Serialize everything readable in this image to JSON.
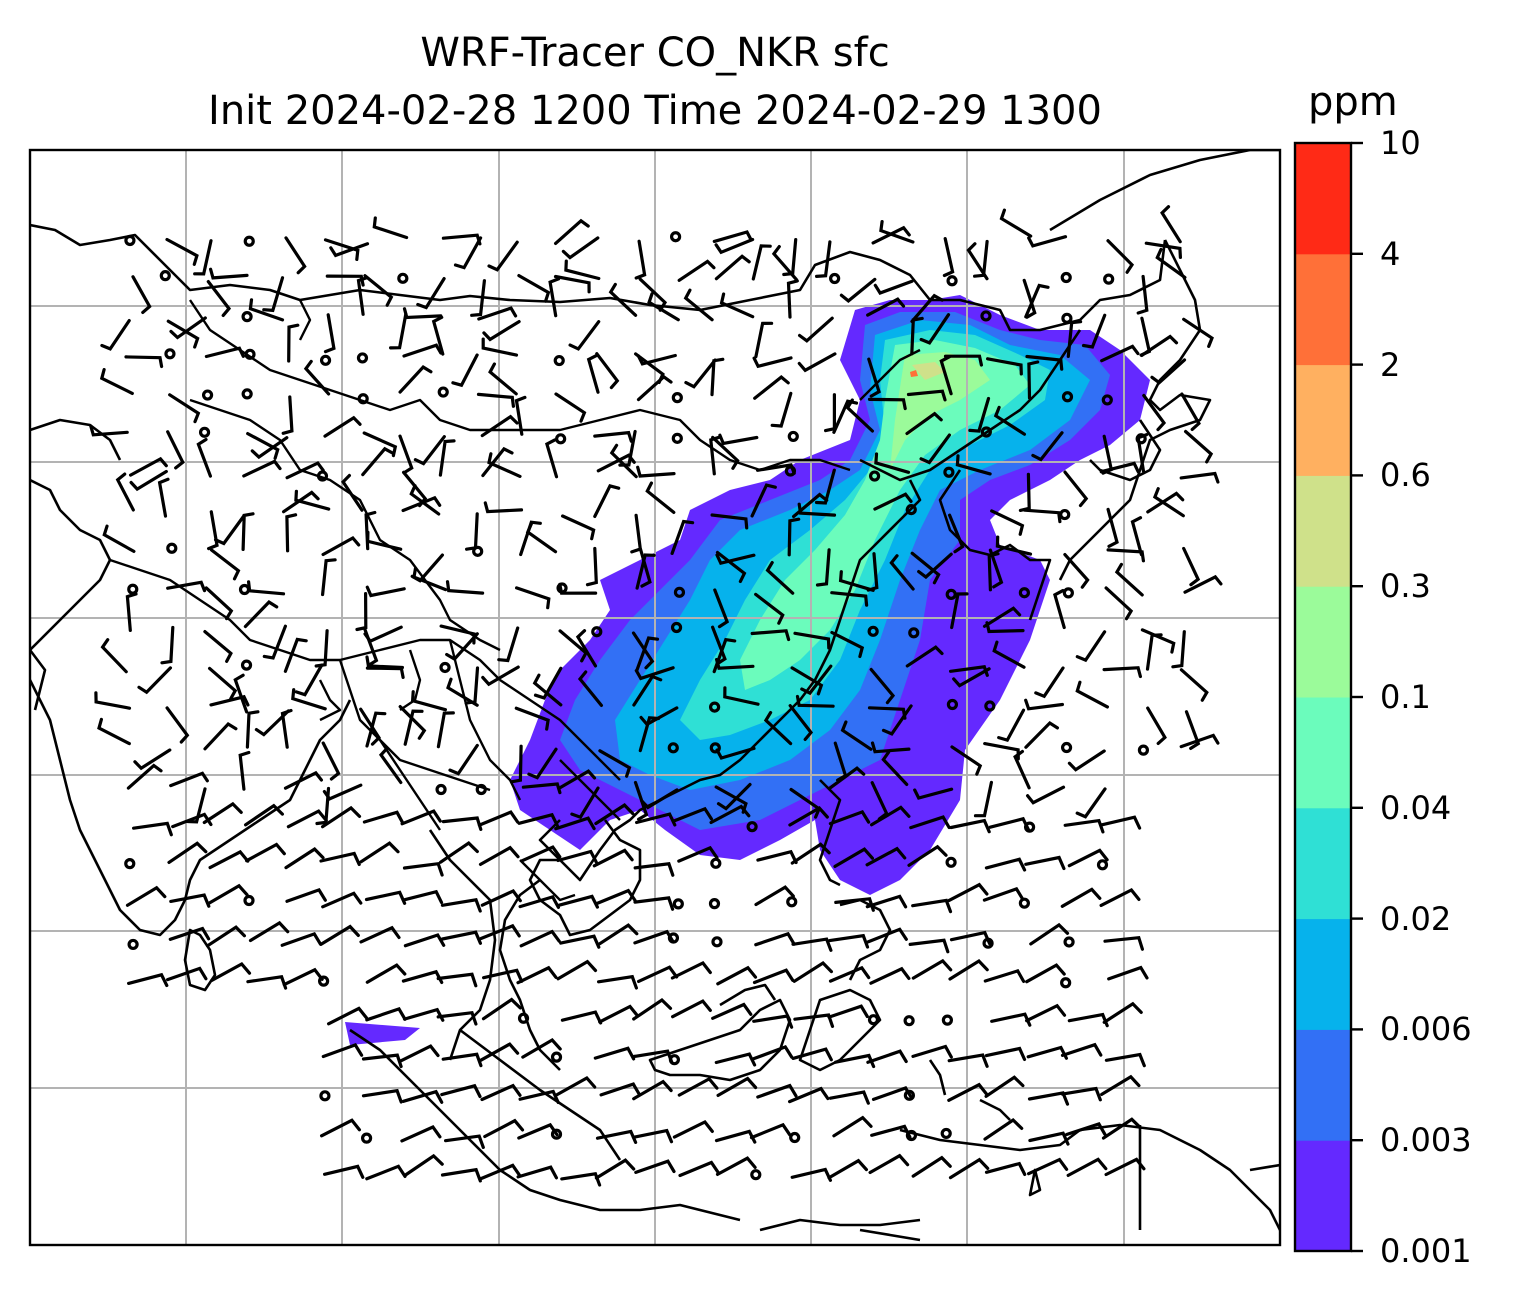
{
  "title": {
    "line1": "WRF-Tracer CO_NKR sfc",
    "line2": "Init 2024-02-28 1200 Time 2024-02-29 1300"
  },
  "colorbar": {
    "unit": "ppm",
    "levels": [
      "0.001",
      "0.003",
      "0.006",
      "0.02",
      "0.04",
      "0.1",
      "0.3",
      "0.6",
      "2",
      "4",
      "10"
    ],
    "colors": [
      "#6429ff",
      "#3270f5",
      "#06b2ec",
      "#2fe0d5",
      "#6bfcbc",
      "#9bfb9a",
      "#cfe18a",
      "#ffb060",
      "#ff7038",
      "#ff2a16"
    ]
  },
  "map": {
    "field": "CO_NKR surface tracer concentration",
    "overlays": [
      "coastlines",
      "country-borders",
      "lat-lon-gridlines",
      "wind-barbs"
    ],
    "background": "#ffffff"
  }
}
